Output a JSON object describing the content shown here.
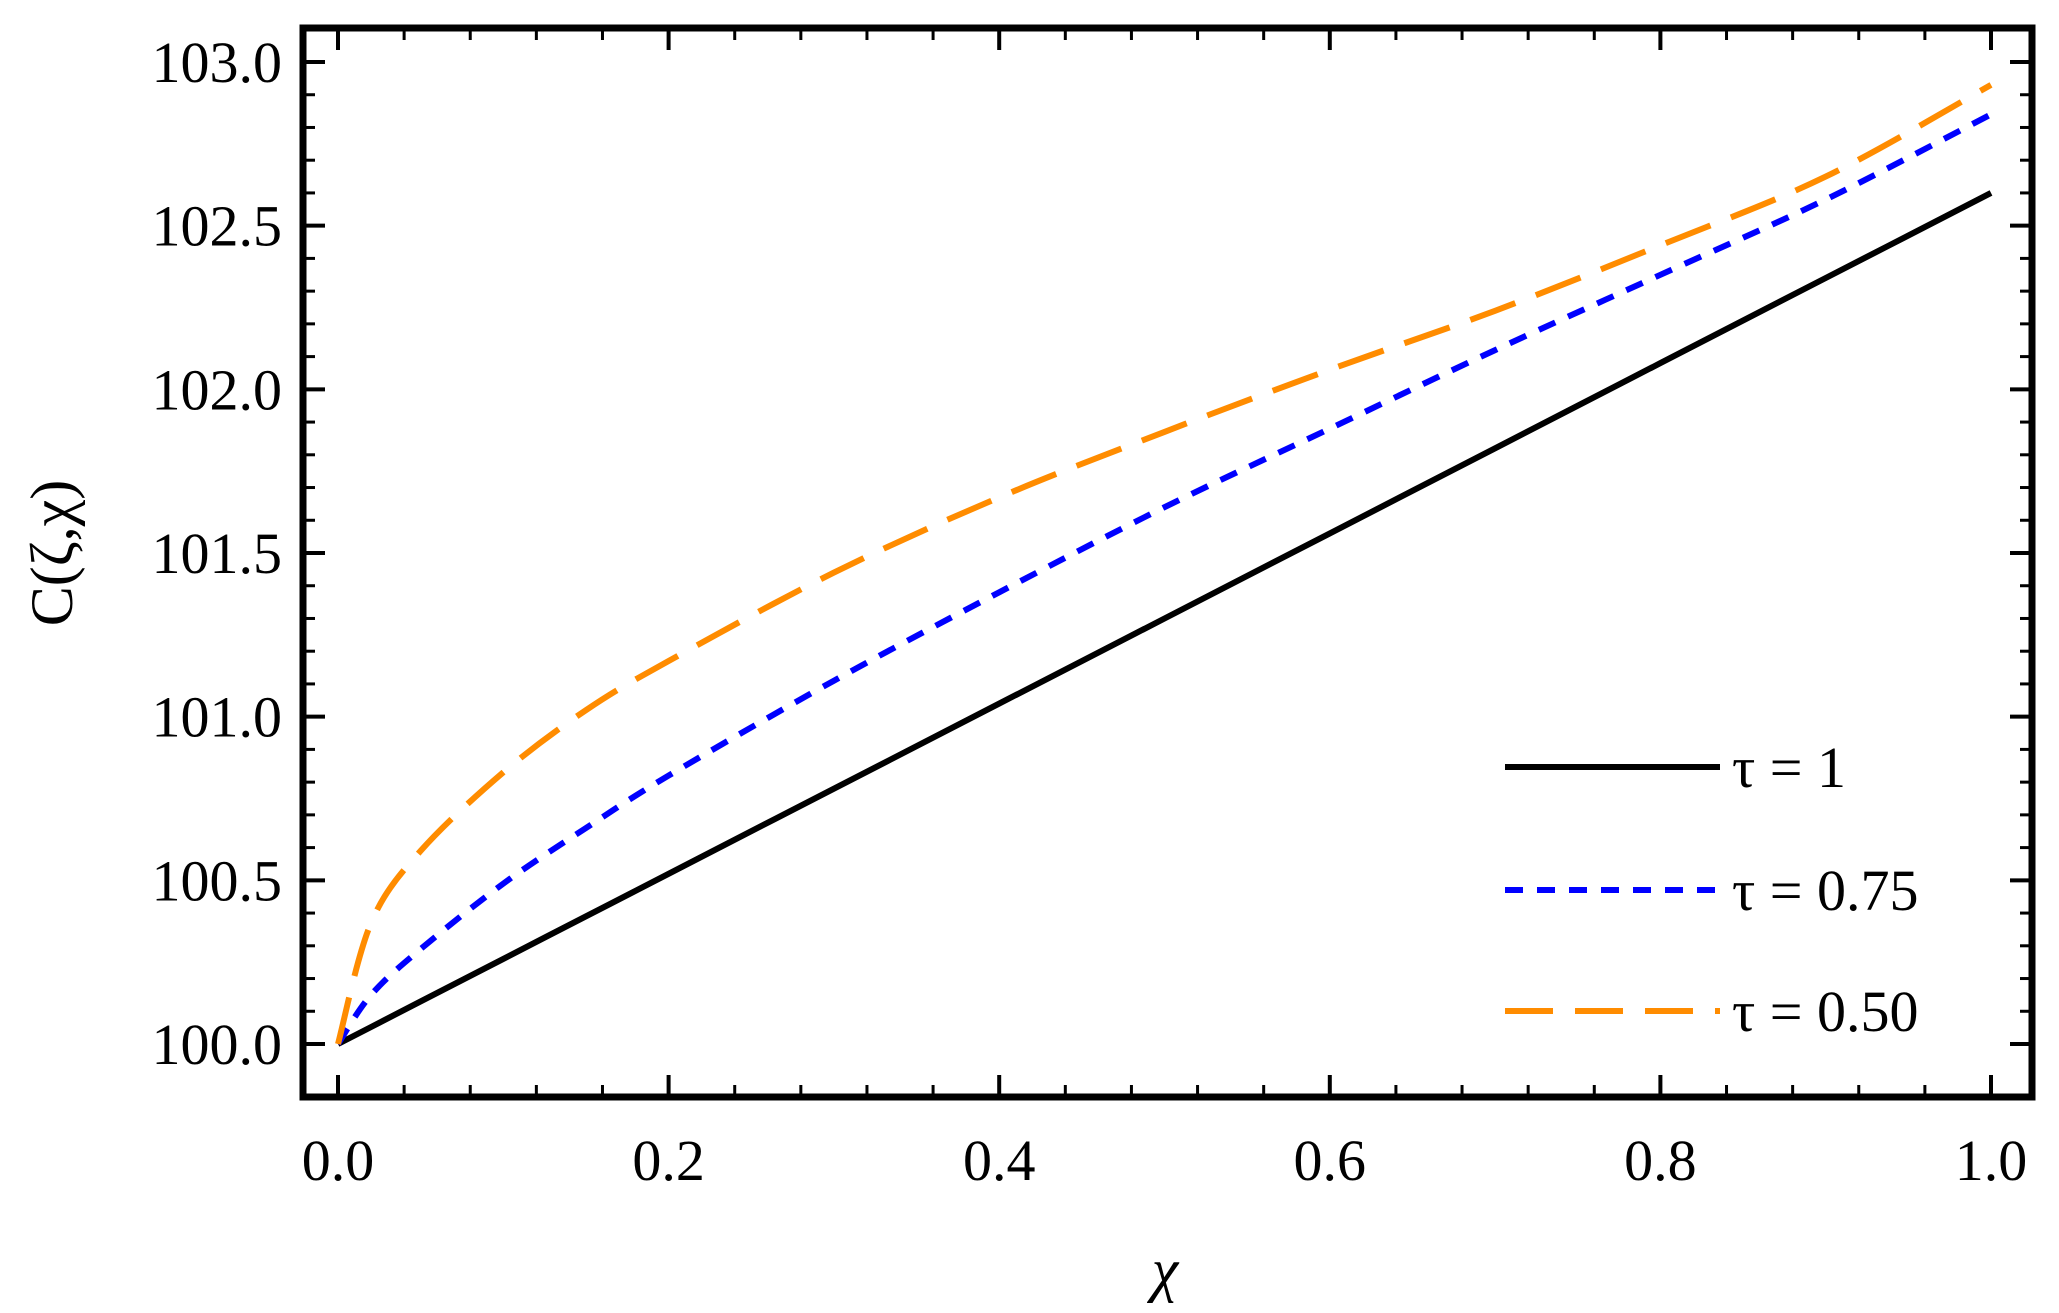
{
  "chart_data": {
    "type": "line",
    "title": "",
    "xlabel": "χ",
    "ylabel": "C(ζ,χ)",
    "xlim": [
      0.0,
      1.0
    ],
    "ylim": [
      100.0,
      103.0
    ],
    "x_ticks": [
      "0.0",
      "0.2",
      "0.4",
      "0.6",
      "0.8",
      "1.0"
    ],
    "y_ticks": [
      "100.0",
      "100.5",
      "101.0",
      "101.5",
      "102.0",
      "102.5",
      "103.0"
    ],
    "grid": false,
    "legend_position": "bottom-right",
    "x": [
      0.0,
      0.02,
      0.05,
      0.1,
      0.15,
      0.2,
      0.3,
      0.4,
      0.5,
      0.6,
      0.7,
      0.8,
      0.9,
      1.0
    ],
    "series": [
      {
        "name": "τ = 1",
        "color": "#000000",
        "style": "solid",
        "values": [
          100.0,
          100.052,
          100.13,
          100.26,
          100.39,
          100.52,
          100.78,
          101.04,
          101.3,
          101.56,
          101.82,
          102.08,
          102.34,
          102.6
        ]
      },
      {
        "name": "τ = 0.75",
        "color": "#0000ff",
        "style": "dotted",
        "values": [
          100.0,
          100.15,
          100.29,
          100.49,
          100.66,
          100.82,
          101.11,
          101.38,
          101.64,
          101.88,
          102.12,
          102.35,
          102.58,
          102.84
        ]
      },
      {
        "name": "τ = 0.50",
        "color": "#ff8c00",
        "style": "dashed",
        "values": [
          100.0,
          100.37,
          100.59,
          100.83,
          101.02,
          101.17,
          101.44,
          101.67,
          101.87,
          102.06,
          102.24,
          102.44,
          102.65,
          102.93
        ]
      }
    ]
  }
}
